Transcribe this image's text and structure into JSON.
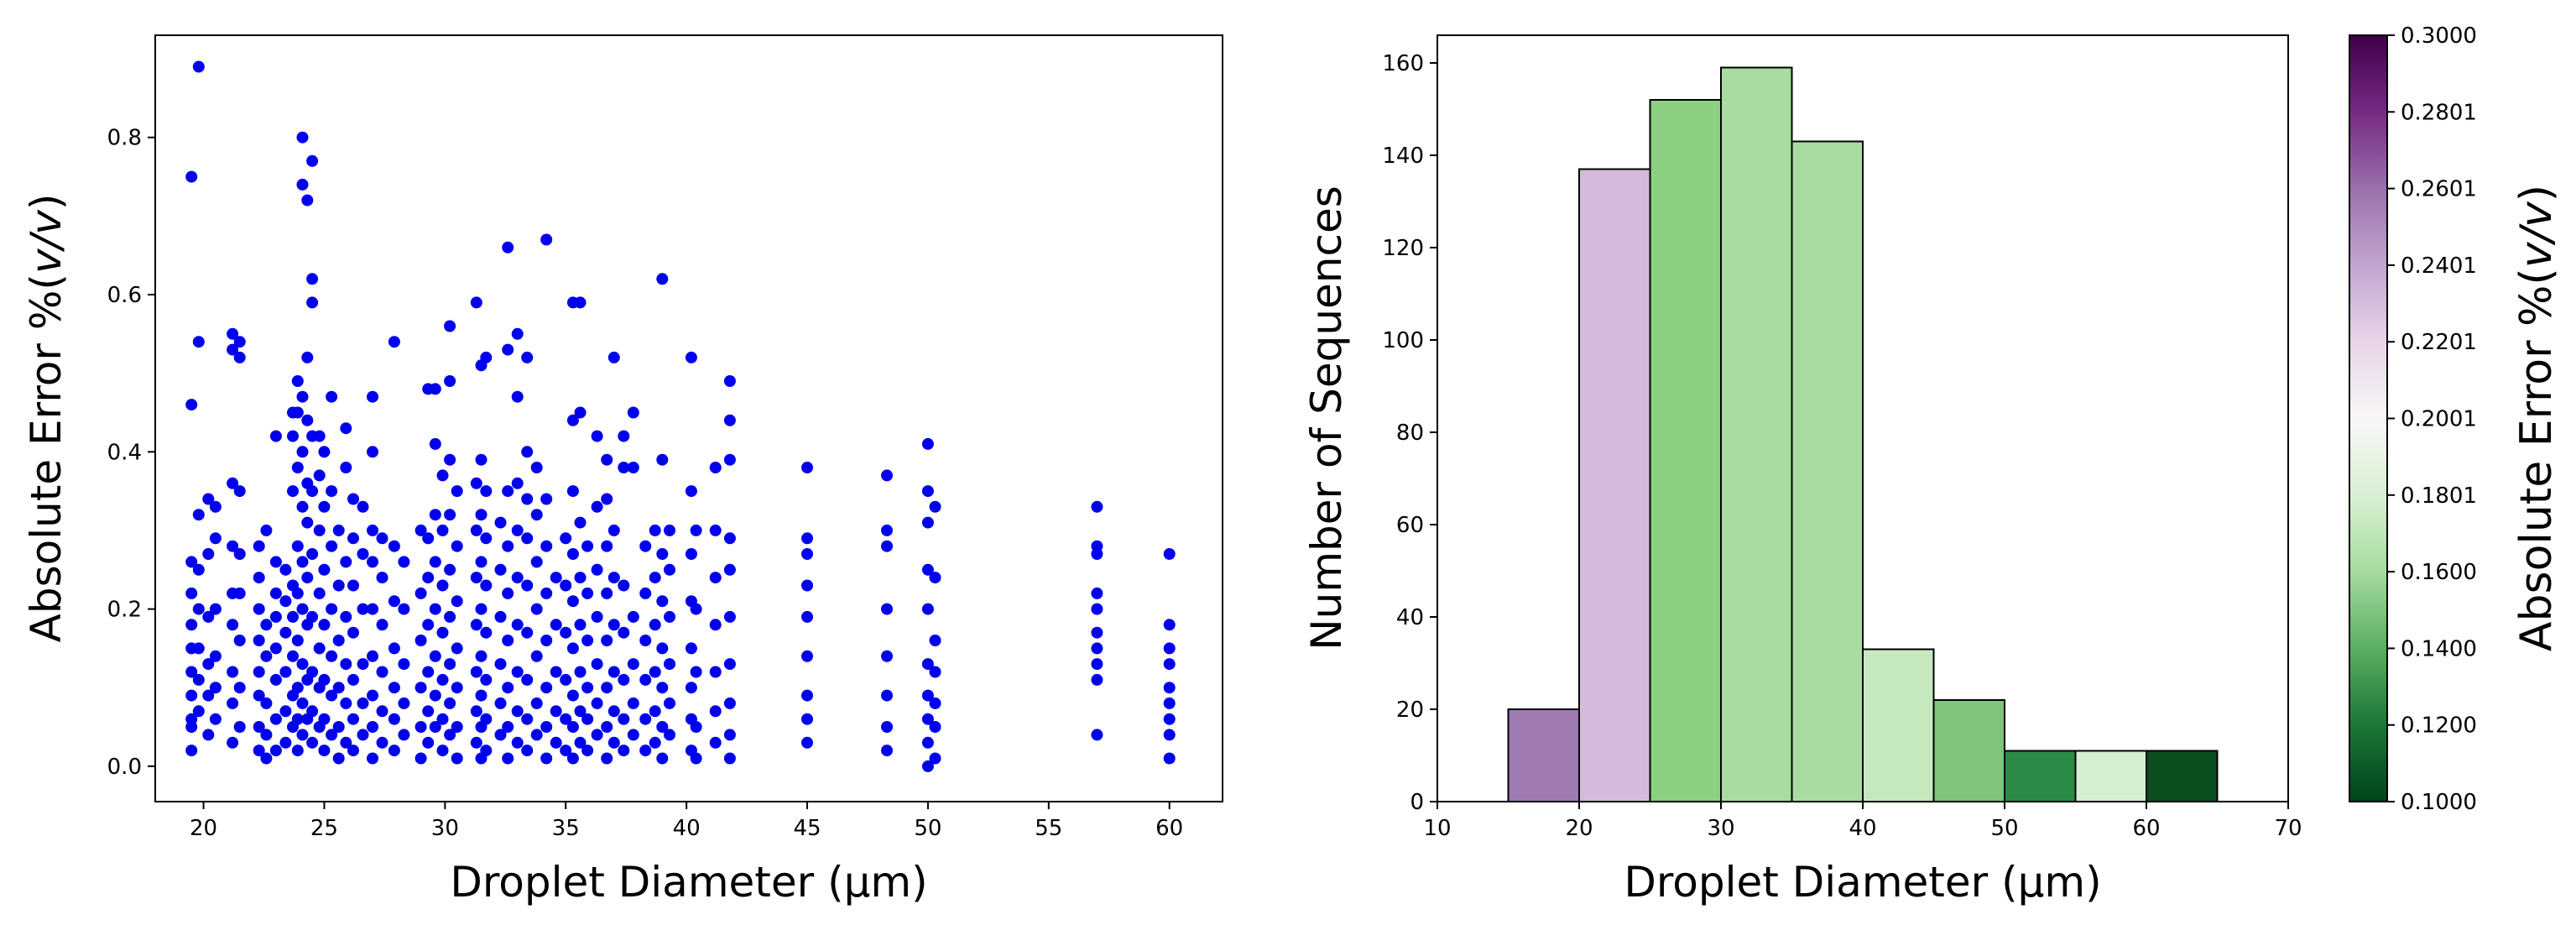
{
  "chart_data": [
    {
      "type": "scatter",
      "xlabel": "Droplet Diameter (µm)",
      "ylabel_prefix": "Absolute Error %(",
      "ylabel_em": "v/v",
      "ylabel_suffix": ")",
      "xlim": [
        18,
        62.2
      ],
      "ylim": [
        -0.045,
        0.93
      ],
      "x_ticks": [
        20,
        25,
        30,
        35,
        40,
        45,
        50,
        55,
        60
      ],
      "y_ticks": [
        0.0,
        0.2,
        0.4,
        0.6,
        0.8
      ],
      "y_tick_labels": [
        "0.0",
        "0.2",
        "0.4",
        "0.6",
        "0.8"
      ],
      "point_color": "#0000ee",
      "columns": [
        {
          "x": 19.5,
          "y": [
            0.02,
            0.05,
            0.06,
            0.09,
            0.12,
            0.15,
            0.18,
            0.22,
            0.26,
            0.46,
            0.75
          ]
        },
        {
          "x": 19.8,
          "y": [
            0.07,
            0.11,
            0.15,
            0.2,
            0.25,
            0.32,
            0.54,
            0.89
          ]
        },
        {
          "x": 20.2,
          "y": [
            0.04,
            0.09,
            0.13,
            0.19,
            0.27,
            0.34
          ]
        },
        {
          "x": 20.5,
          "y": [
            0.06,
            0.1,
            0.14,
            0.2,
            0.29,
            0.33
          ]
        },
        {
          "x": 21.2,
          "y": [
            0.03,
            0.08,
            0.12,
            0.18,
            0.22,
            0.28,
            0.36,
            0.53,
            0.55
          ]
        },
        {
          "x": 21.5,
          "y": [
            0.05,
            0.1,
            0.16,
            0.22,
            0.27,
            0.35,
            0.52,
            0.54
          ]
        },
        {
          "x": 22.3,
          "y": [
            0.02,
            0.05,
            0.09,
            0.12,
            0.16,
            0.2,
            0.24,
            0.28
          ]
        },
        {
          "x": 22.6,
          "y": [
            0.01,
            0.04,
            0.08,
            0.14,
            0.18,
            0.3
          ]
        },
        {
          "x": 23.0,
          "y": [
            0.02,
            0.06,
            0.11,
            0.15,
            0.19,
            0.22,
            0.26,
            0.42
          ]
        },
        {
          "x": 23.4,
          "y": [
            0.03,
            0.07,
            0.12,
            0.17,
            0.21,
            0.25
          ]
        },
        {
          "x": 23.7,
          "y": [
            0.05,
            0.09,
            0.14,
            0.19,
            0.23,
            0.35,
            0.42,
            0.45
          ]
        },
        {
          "x": 23.9,
          "y": [
            0.02,
            0.06,
            0.1,
            0.16,
            0.22,
            0.28,
            0.38,
            0.45,
            0.49
          ]
        },
        {
          "x": 24.1,
          "y": [
            0.04,
            0.08,
            0.13,
            0.2,
            0.26,
            0.33,
            0.4,
            0.47,
            0.74,
            0.8
          ]
        },
        {
          "x": 24.3,
          "y": [
            0.06,
            0.11,
            0.18,
            0.24,
            0.31,
            0.36,
            0.44,
            0.52,
            0.72
          ]
        },
        {
          "x": 24.5,
          "y": [
            0.03,
            0.07,
            0.12,
            0.19,
            0.27,
            0.35,
            0.42,
            0.59,
            0.62,
            0.77
          ]
        },
        {
          "x": 24.8,
          "y": [
            0.05,
            0.1,
            0.15,
            0.22,
            0.3,
            0.37,
            0.42
          ]
        },
        {
          "x": 25.0,
          "y": [
            0.02,
            0.06,
            0.11,
            0.18,
            0.25,
            0.33,
            0.4
          ]
        },
        {
          "x": 25.3,
          "y": [
            0.04,
            0.09,
            0.14,
            0.2,
            0.28,
            0.35,
            0.47
          ]
        },
        {
          "x": 25.6,
          "y": [
            0.01,
            0.05,
            0.1,
            0.16,
            0.23,
            0.3
          ]
        },
        {
          "x": 25.9,
          "y": [
            0.03,
            0.08,
            0.13,
            0.19,
            0.26,
            0.38,
            0.43
          ]
        },
        {
          "x": 26.2,
          "y": [
            0.02,
            0.06,
            0.11,
            0.17,
            0.23,
            0.29,
            0.34
          ]
        },
        {
          "x": 26.6,
          "y": [
            0.04,
            0.08,
            0.13,
            0.2,
            0.27,
            0.33
          ]
        },
        {
          "x": 27.0,
          "y": [
            0.01,
            0.05,
            0.09,
            0.14,
            0.2,
            0.26,
            0.3,
            0.4,
            0.47
          ]
        },
        {
          "x": 27.4,
          "y": [
            0.03,
            0.07,
            0.12,
            0.18,
            0.24,
            0.29
          ]
        },
        {
          "x": 27.9,
          "y": [
            0.02,
            0.06,
            0.1,
            0.15,
            0.21,
            0.28,
            0.54
          ]
        },
        {
          "x": 28.3,
          "y": [
            0.04,
            0.08,
            0.13,
            0.2,
            0.26
          ]
        },
        {
          "x": 29.0,
          "y": [
            0.01,
            0.05,
            0.1,
            0.16,
            0.22,
            0.3
          ]
        },
        {
          "x": 29.3,
          "y": [
            0.03,
            0.07,
            0.12,
            0.18,
            0.24,
            0.29,
            0.48
          ]
        },
        {
          "x": 29.6,
          "y": [
            0.05,
            0.09,
            0.14,
            0.2,
            0.26,
            0.32,
            0.41,
            0.48
          ]
        },
        {
          "x": 29.9,
          "y": [
            0.02,
            0.06,
            0.11,
            0.17,
            0.23,
            0.3,
            0.37
          ]
        },
        {
          "x": 30.2,
          "y": [
            0.04,
            0.08,
            0.13,
            0.19,
            0.25,
            0.32,
            0.39,
            0.49,
            0.56
          ]
        },
        {
          "x": 30.5,
          "y": [
            0.01,
            0.05,
            0.1,
            0.15,
            0.21,
            0.28,
            0.35
          ]
        },
        {
          "x": 31.3,
          "y": [
            0.03,
            0.07,
            0.12,
            0.18,
            0.24,
            0.3,
            0.36,
            0.59
          ]
        },
        {
          "x": 31.5,
          "y": [
            0.01,
            0.05,
            0.09,
            0.14,
            0.2,
            0.26,
            0.32,
            0.39,
            0.51
          ]
        },
        {
          "x": 31.7,
          "y": [
            0.02,
            0.06,
            0.11,
            0.17,
            0.23,
            0.29,
            0.35,
            0.52
          ]
        },
        {
          "x": 32.3,
          "y": [
            0.04,
            0.08,
            0.13,
            0.19,
            0.25,
            0.31
          ]
        },
        {
          "x": 32.6,
          "y": [
            0.01,
            0.05,
            0.1,
            0.16,
            0.22,
            0.28,
            0.35,
            0.53,
            0.66
          ]
        },
        {
          "x": 33.0,
          "y": [
            0.03,
            0.07,
            0.12,
            0.18,
            0.24,
            0.3,
            0.36,
            0.47,
            0.55
          ]
        },
        {
          "x": 33.4,
          "y": [
            0.02,
            0.06,
            0.11,
            0.17,
            0.23,
            0.29,
            0.34,
            0.4,
            0.52
          ]
        },
        {
          "x": 33.8,
          "y": [
            0.04,
            0.08,
            0.14,
            0.2,
            0.26,
            0.32,
            0.38
          ]
        },
        {
          "x": 34.2,
          "y": [
            0.01,
            0.05,
            0.1,
            0.16,
            0.22,
            0.28,
            0.34,
            0.67
          ]
        },
        {
          "x": 34.6,
          "y": [
            0.03,
            0.07,
            0.12,
            0.18,
            0.24
          ]
        },
        {
          "x": 35.0,
          "y": [
            0.02,
            0.06,
            0.11,
            0.17,
            0.23,
            0.29
          ]
        },
        {
          "x": 35.3,
          "y": [
            0.01,
            0.05,
            0.09,
            0.15,
            0.21,
            0.27,
            0.35,
            0.44,
            0.59
          ]
        },
        {
          "x": 35.6,
          "y": [
            0.03,
            0.07,
            0.12,
            0.18,
            0.24,
            0.31,
            0.45,
            0.59
          ]
        },
        {
          "x": 35.9,
          "y": [
            0.02,
            0.06,
            0.1,
            0.16,
            0.22,
            0.28
          ]
        },
        {
          "x": 36.3,
          "y": [
            0.04,
            0.08,
            0.13,
            0.19,
            0.25,
            0.33,
            0.42
          ]
        },
        {
          "x": 36.7,
          "y": [
            0.01,
            0.05,
            0.1,
            0.16,
            0.22,
            0.28,
            0.34,
            0.39
          ]
        },
        {
          "x": 37.0,
          "y": [
            0.03,
            0.07,
            0.12,
            0.18,
            0.24,
            0.3,
            0.52
          ]
        },
        {
          "x": 37.4,
          "y": [
            0.02,
            0.06,
            0.11,
            0.17,
            0.23,
            0.38,
            0.42
          ]
        },
        {
          "x": 37.8,
          "y": [
            0.04,
            0.08,
            0.13,
            0.19,
            0.38,
            0.45
          ]
        },
        {
          "x": 38.3,
          "y": [
            0.02,
            0.06,
            0.11,
            0.16,
            0.22,
            0.28
          ]
        },
        {
          "x": 38.7,
          "y": [
            0.03,
            0.07,
            0.12,
            0.18,
            0.24,
            0.3
          ]
        },
        {
          "x": 39.0,
          "y": [
            0.01,
            0.05,
            0.1,
            0.15,
            0.21,
            0.27,
            0.39,
            0.62
          ]
        },
        {
          "x": 39.3,
          "y": [
            0.04,
            0.08,
            0.13,
            0.19,
            0.25,
            0.3
          ]
        },
        {
          "x": 40.2,
          "y": [
            0.02,
            0.06,
            0.1,
            0.15,
            0.21,
            0.27,
            0.35,
            0.52
          ]
        },
        {
          "x": 40.4,
          "y": [
            0.01,
            0.05,
            0.12,
            0.2,
            0.3
          ]
        },
        {
          "x": 41.2,
          "y": [
            0.03,
            0.07,
            0.12,
            0.18,
            0.24,
            0.3,
            0.38
          ]
        },
        {
          "x": 41.8,
          "y": [
            0.01,
            0.04,
            0.08,
            0.13,
            0.19,
            0.25,
            0.29,
            0.39,
            0.44,
            0.49
          ]
        },
        {
          "x": 45.0,
          "y": [
            0.03,
            0.06,
            0.09,
            0.14,
            0.19,
            0.23,
            0.27,
            0.29,
            0.38
          ]
        },
        {
          "x": 48.3,
          "y": [
            0.02,
            0.05,
            0.09,
            0.14,
            0.2,
            0.28,
            0.3,
            0.37
          ]
        },
        {
          "x": 50.0,
          "y": [
            0.0,
            0.03,
            0.06,
            0.09,
            0.13,
            0.2,
            0.25,
            0.31,
            0.35,
            0.41
          ]
        },
        {
          "x": 50.3,
          "y": [
            0.01,
            0.05,
            0.08,
            0.12,
            0.16,
            0.24,
            0.33
          ]
        },
        {
          "x": 57.0,
          "y": [
            0.04,
            0.11,
            0.13,
            0.15,
            0.17,
            0.2,
            0.22,
            0.27,
            0.28,
            0.33
          ]
        },
        {
          "x": 60.0,
          "y": [
            0.01,
            0.04,
            0.06,
            0.08,
            0.1,
            0.13,
            0.15,
            0.18,
            0.27
          ]
        }
      ]
    },
    {
      "type": "bar",
      "xlabel": "Droplet Diameter (µm)",
      "ylabel": "Number of Sequences",
      "xlim": [
        10,
        70
      ],
      "ylim": [
        0,
        166
      ],
      "x_ticks": [
        10,
        20,
        30,
        40,
        50,
        60,
        70
      ],
      "y_ticks": [
        0,
        20,
        40,
        60,
        80,
        100,
        120,
        140,
        160
      ],
      "bin_edges": [
        15,
        20,
        25,
        30,
        35,
        40,
        45,
        50,
        55,
        60,
        65
      ],
      "counts": [
        20,
        137,
        152,
        159,
        143,
        33,
        22,
        11,
        11,
        11
      ],
      "bar_colors": [
        "#a07bb3",
        "#d4bbdb",
        "#8ccf81",
        "#a8dca0",
        "#a9dca1",
        "#c6e8bf",
        "#7fc47a",
        "#2b8a45",
        "#d6efd0",
        "#0b4d1e"
      ],
      "edge_color": "#000000",
      "colorbar": {
        "label_prefix": "Absolute Error %(",
        "label_em": "v/v",
        "label_suffix": ")",
        "range": [
          0.1,
          0.3
        ],
        "ticks": [
          0.1,
          0.12,
          0.14,
          0.16,
          0.18,
          0.2,
          0.22,
          0.24,
          0.26,
          0.28,
          0.3
        ],
        "tick_labels": [
          "0.1000",
          "0.1200",
          "0.1400",
          "0.1600",
          "0.1801",
          "0.2001",
          "0.2201",
          "0.2401",
          "0.2601",
          "0.2801",
          "0.3000"
        ],
        "colormap": [
          "#00441b",
          "#1b7837",
          "#5aae61",
          "#a6dba0",
          "#d9f0d3",
          "#f7f7f7",
          "#e7d4e8",
          "#c2a5cf",
          "#9970ab",
          "#762a83",
          "#40004b"
        ]
      }
    }
  ]
}
